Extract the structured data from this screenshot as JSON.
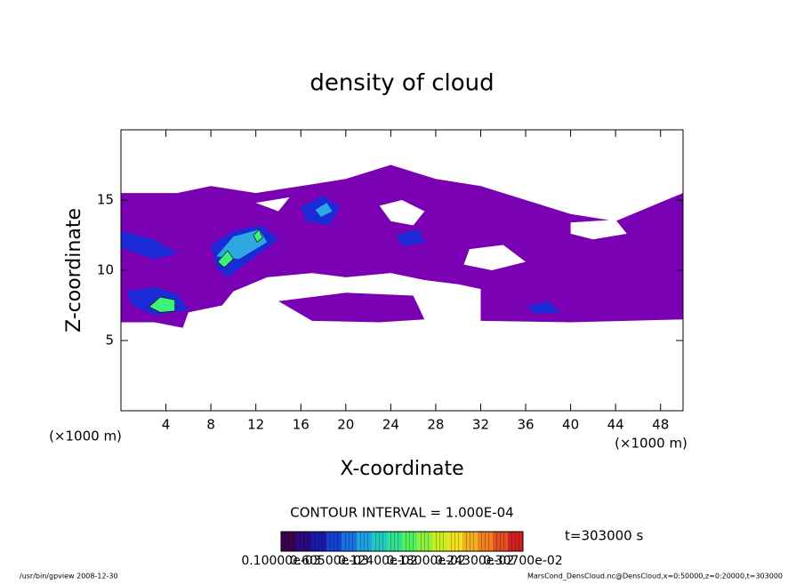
{
  "chart_data": {
    "type": "contour",
    "title": "density of cloud",
    "x_label": "X-coordinate",
    "y_label": "Z-coordinate",
    "x_unit_left": "(×1000 m)",
    "x_unit_right": "(×1000 m)",
    "xlim": [
      0,
      50
    ],
    "ylim": [
      0,
      20
    ],
    "xticks": [
      4,
      8,
      12,
      16,
      20,
      24,
      28,
      32,
      36,
      40,
      44,
      48
    ],
    "yticks": [
      5,
      10,
      15
    ],
    "contour_interval": "CONTOUR INTERVAL = 1.000E-04",
    "time_label": "t=303000 s",
    "regions": [
      {
        "level": 0.0001,
        "color": "#7a00b4",
        "points": [
          [
            0,
            6.3
          ],
          [
            3,
            6.3
          ],
          [
            5.5,
            5.9
          ],
          [
            6,
            7
          ],
          [
            9,
            7.5
          ],
          [
            10,
            8.5
          ],
          [
            13,
            9.5
          ],
          [
            17,
            9.8
          ],
          [
            20,
            9.5
          ],
          [
            24,
            9.8
          ],
          [
            27,
            9.3
          ],
          [
            30,
            9.0
          ],
          [
            33,
            8.5
          ],
          [
            36,
            8.5
          ],
          [
            40,
            8.0
          ],
          [
            44,
            8.0
          ],
          [
            47,
            7.0
          ],
          [
            50,
            6.8
          ],
          [
            50,
            15.5
          ],
          [
            47,
            14.5
          ],
          [
            44,
            13.5
          ],
          [
            40,
            14
          ],
          [
            36,
            15
          ],
          [
            32,
            16
          ],
          [
            28,
            16.5
          ],
          [
            24,
            17.5
          ],
          [
            20,
            16.5
          ],
          [
            16,
            16
          ],
          [
            12,
            15.5
          ],
          [
            8,
            16
          ],
          [
            5,
            15.5
          ],
          [
            0,
            15.5
          ]
        ]
      },
      {
        "level": 0.0001,
        "color": "#7a00b4",
        "points": [
          [
            14,
            7.8
          ],
          [
            17,
            6.4
          ],
          [
            23,
            6.3
          ],
          [
            27,
            6.5
          ],
          [
            26,
            8.2
          ],
          [
            20,
            8.4
          ]
        ]
      },
      {
        "level": 0.0001,
        "color": "#7a00b4",
        "points": [
          [
            32,
            6.4
          ],
          [
            40,
            6.3
          ],
          [
            50,
            6.5
          ],
          [
            50,
            9
          ],
          [
            40,
            9
          ],
          [
            32,
            9
          ]
        ]
      },
      {
        "level": 0,
        "color": "#ffffff",
        "points": [
          [
            23,
            14.6
          ],
          [
            25,
            15.0
          ],
          [
            27,
            14.2
          ],
          [
            26,
            13.2
          ],
          [
            24,
            13.5
          ]
        ]
      },
      {
        "level": 0,
        "color": "#ffffff",
        "points": [
          [
            30.5,
            10.4
          ],
          [
            33,
            10.0
          ],
          [
            36,
            10.6
          ],
          [
            34,
            11.8
          ],
          [
            31,
            11.5
          ]
        ]
      },
      {
        "level": 0,
        "color": "#ffffff",
        "points": [
          [
            40,
            13.4
          ],
          [
            44,
            13.6
          ],
          [
            45,
            12.6
          ],
          [
            42,
            12.2
          ],
          [
            40,
            12.6
          ]
        ]
      },
      {
        "level": 0,
        "color": "#ffffff",
        "points": [
          [
            27.5,
            8.7
          ],
          [
            30,
            9.0
          ],
          [
            31,
            8.2
          ],
          [
            29,
            8.0
          ]
        ]
      },
      {
        "level": 0,
        "color": "#ffffff",
        "points": [
          [
            12,
            14.8
          ],
          [
            15,
            15.2
          ],
          [
            14,
            14.2
          ]
        ]
      },
      {
        "level": 0.0004,
        "color": "#1a2ad6",
        "points": [
          [
            0,
            12.8
          ],
          [
            3,
            12.2
          ],
          [
            5,
            11.2
          ],
          [
            3,
            10.8
          ],
          [
            0,
            11.6
          ]
        ]
      },
      {
        "level": 0.0004,
        "color": "#1a2ad6",
        "points": [
          [
            0.5,
            8.5
          ],
          [
            3,
            8.8
          ],
          [
            5,
            8.3
          ],
          [
            6,
            7.2
          ],
          [
            3,
            6.8
          ],
          [
            1,
            7.5
          ]
        ]
      },
      {
        "level": 0.0004,
        "color": "#1a2ad6",
        "points": [
          [
            8,
            11.8
          ],
          [
            10,
            12.8
          ],
          [
            12.5,
            13.2
          ],
          [
            14,
            12.2
          ],
          [
            12,
            11
          ],
          [
            9.5,
            9.5
          ],
          [
            8.5,
            10.2
          ]
        ]
      },
      {
        "level": 0.0004,
        "color": "#1a2ad6",
        "points": [
          [
            16,
            14.5
          ],
          [
            18,
            15.3
          ],
          [
            19.5,
            14.5
          ],
          [
            18.5,
            13.2
          ],
          [
            16.5,
            13.5
          ]
        ]
      },
      {
        "level": 0.0004,
        "color": "#1a2ad6",
        "points": [
          [
            24.5,
            12.5
          ],
          [
            26.5,
            12.9
          ],
          [
            27,
            12.0
          ],
          [
            25,
            11.7
          ]
        ]
      },
      {
        "level": 0.0004,
        "color": "#1a2ad6",
        "points": [
          [
            36,
            7.4
          ],
          [
            38,
            7.8
          ],
          [
            39,
            7.0
          ],
          [
            37,
            6.9
          ]
        ]
      },
      {
        "level": 0.0008,
        "color": "#2fa8e0",
        "points": [
          [
            8.5,
            11
          ],
          [
            10,
            12.4
          ],
          [
            12.3,
            12.9
          ],
          [
            13,
            12
          ],
          [
            10.5,
            10.8
          ]
        ]
      },
      {
        "level": 0.0008,
        "color": "#2fa8e0",
        "points": [
          [
            17.3,
            14.3
          ],
          [
            18.3,
            14.8
          ],
          [
            18.8,
            14.2
          ],
          [
            17.8,
            13.8
          ]
        ]
      },
      {
        "level": 0.0012,
        "color": "#3cf07a",
        "points": [
          [
            2.5,
            7.4
          ],
          [
            3.5,
            8.1
          ],
          [
            4.8,
            7.9
          ],
          [
            4.8,
            7.1
          ],
          [
            3.5,
            7.0
          ]
        ]
      },
      {
        "level": 0.0012,
        "color": "#3cf07a",
        "points": [
          [
            8.6,
            10.6
          ],
          [
            9.5,
            11.4
          ],
          [
            10,
            10.8
          ],
          [
            9.2,
            10.2
          ]
        ]
      },
      {
        "level": 0.0012,
        "color": "#3cf07a",
        "points": [
          [
            11.8,
            12.5
          ],
          [
            12.3,
            12.9
          ],
          [
            12.6,
            12.3
          ],
          [
            12.1,
            12.0
          ]
        ]
      }
    ],
    "colorbar": {
      "colors": [
        "#3c0050",
        "#2a0a80",
        "#1a1aa8",
        "#1640d0",
        "#1a70e0",
        "#20a0e0",
        "#20c8c0",
        "#30e090",
        "#50f060",
        "#90f040",
        "#c8f020",
        "#f0e020",
        "#f0b020",
        "#f08020",
        "#e05020",
        "#d02020"
      ],
      "labels": [
        "0.10000e-03",
        "0.60500e-03",
        "0.12400e-02",
        "0.18000e-02",
        "0.24300e-02",
        "0.30700e-02"
      ]
    },
    "footer_left": "/usr/bin/gpview  2008-12-30",
    "footer_right": "MarsCond_DensCloud.nc@DensCloud,x=0:50000,z=0:20000,t=303000"
  }
}
